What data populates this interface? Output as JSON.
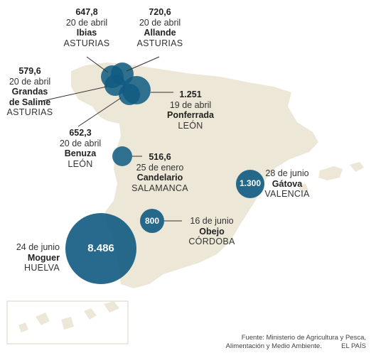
{
  "fires": [
    {
      "id": "ibias",
      "value": "647,8",
      "date": "20 de abril",
      "place": "Ibias",
      "province": "ASTURIAS"
    },
    {
      "id": "allande",
      "value": "720,6",
      "date": "20 de abril",
      "place": "Allande",
      "province": "ASTURIAS"
    },
    {
      "id": "grandas",
      "value": "579,6",
      "date": "20 de abril",
      "place": "Grandas de Salime",
      "place_line1": "Grandas",
      "place_line2": "de Salime",
      "province": "ASTURIAS"
    },
    {
      "id": "ponferrada",
      "value": "1.251",
      "date": "19 de abril",
      "place": "Ponferrada",
      "province": "LEÓN"
    },
    {
      "id": "benuza",
      "value": "652,3",
      "date": "20 de abril",
      "place": "Benuza",
      "province": "LEÓN"
    },
    {
      "id": "candelario",
      "value": "516,6",
      "date": "25 de enero",
      "place": "Candelario",
      "province": "SALAMANCA"
    },
    {
      "id": "gatova",
      "value": "1.300",
      "date": "28 de junio",
      "place": "Gátova",
      "province": "VALENCIA"
    },
    {
      "id": "obejo",
      "value": "800",
      "date": "16 de junio",
      "place": "Obejo",
      "province": "CÓRDOBA"
    },
    {
      "id": "moguer",
      "value": "8.486",
      "date": "24 de junio",
      "place": "Moguer",
      "province": "HUELVA"
    }
  ],
  "source": {
    "line1": "Fuente: Ministerio de Agricultura y Pesca,",
    "line2": "Alimentación y Medio Ambiente.",
    "credit": "EL PAÍS"
  },
  "colors": {
    "land": "#ece7d7",
    "land_border": "#ffffff",
    "bubble": "#0f5a82",
    "bubble_light": "#1b79a8",
    "leader": "#333333"
  }
}
